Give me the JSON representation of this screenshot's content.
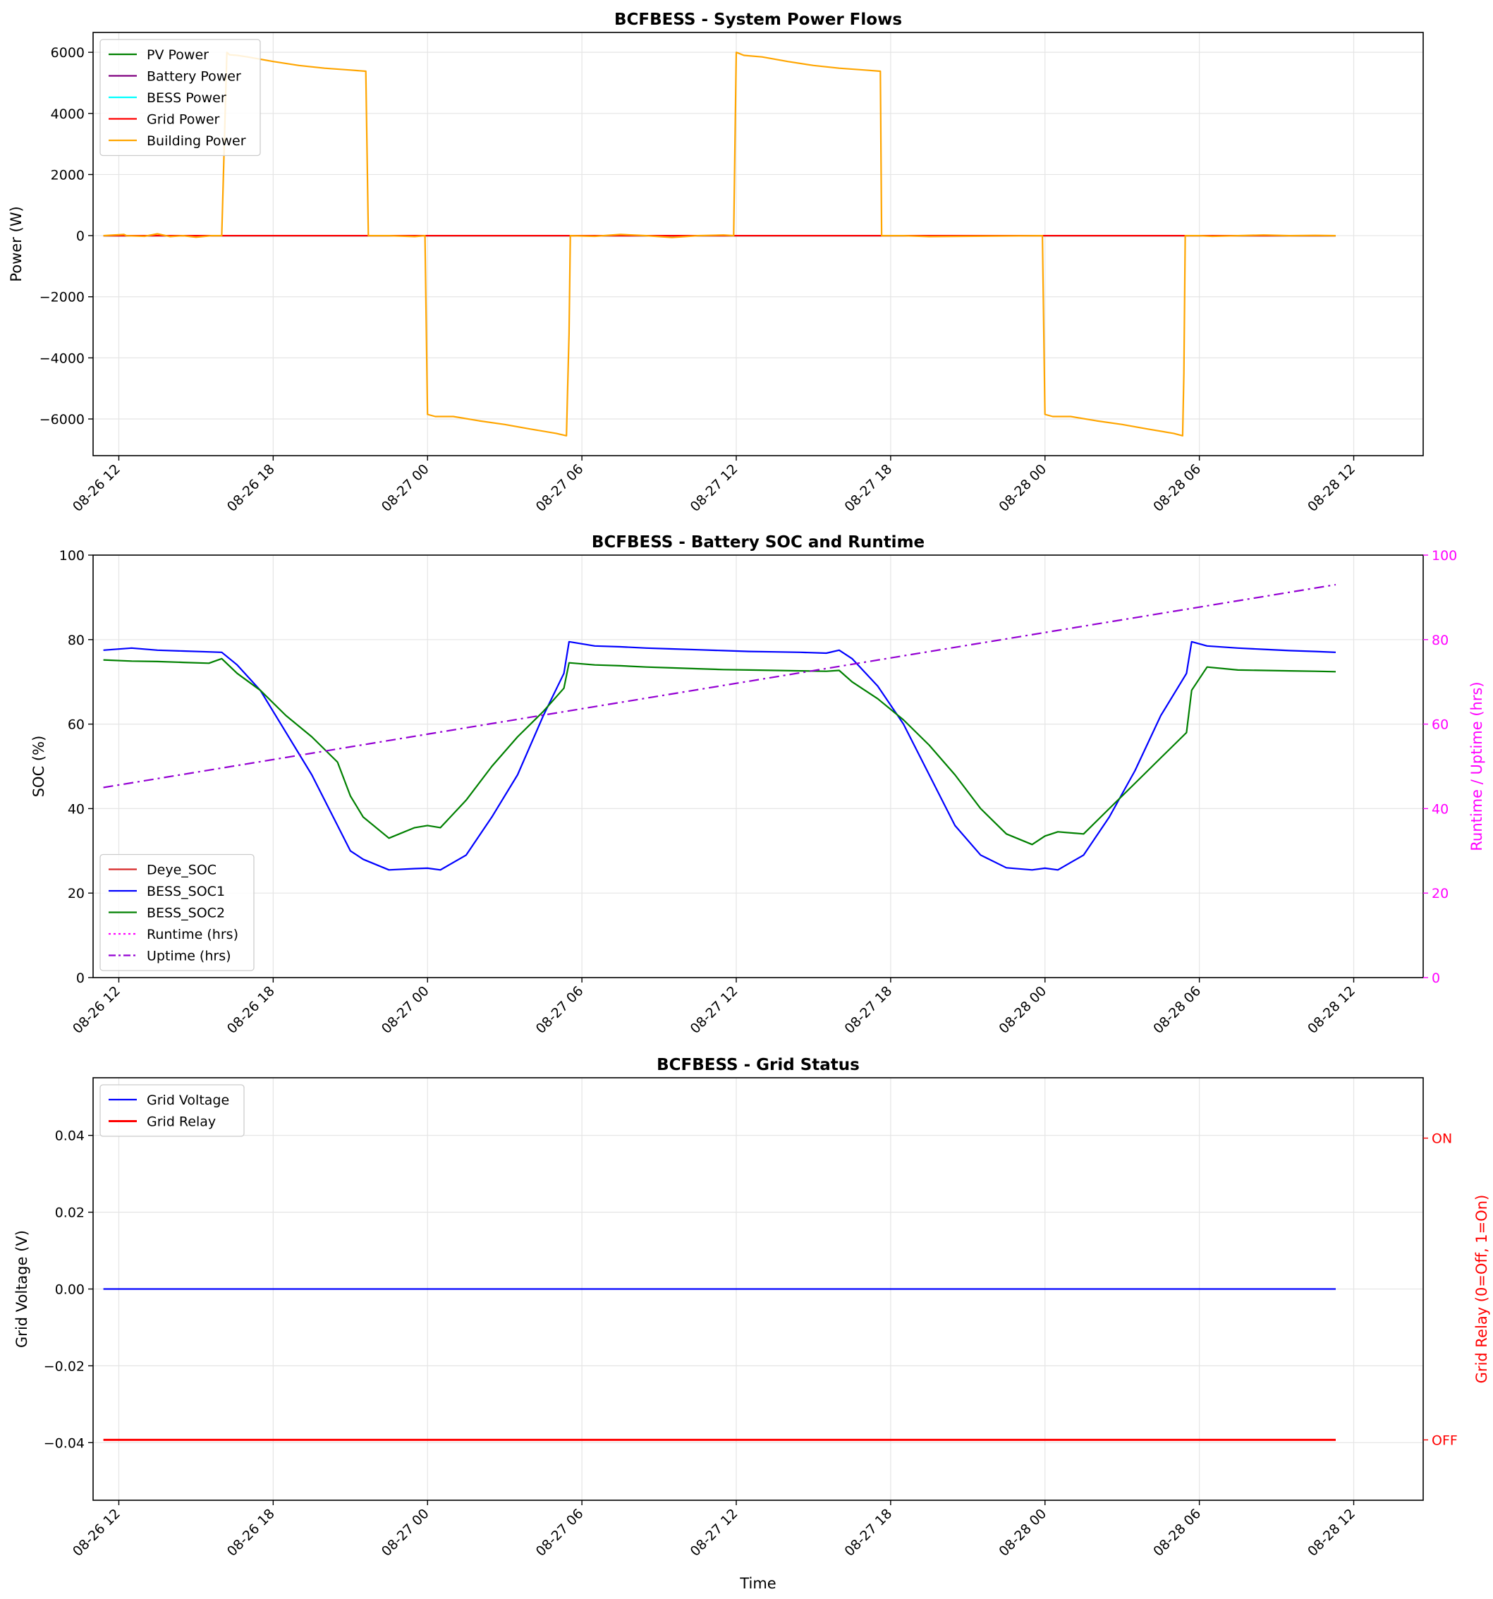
{
  "figure": {
    "xlabel": "Time",
    "x_ticks": [
      "08-26 12",
      "08-26 18",
      "08-27 00",
      "08-27 06",
      "08-27 12",
      "08-27 18",
      "08-28 00",
      "08-28 06",
      "08-28 12"
    ],
    "x_range_hours": [
      -1.0,
      50.7
    ]
  },
  "chart_data": [
    {
      "type": "line",
      "title": "BCFBESS - System Power Flows",
      "ylabel": "Power (W)",
      "ylim": [
        -7200,
        6650
      ],
      "yticks": [
        -6000,
        -4000,
        -2000,
        0,
        2000,
        4000,
        6000
      ],
      "ytick_labels": [
        "−6000",
        "−4000",
        "−2000",
        "0",
        "2000",
        "4000",
        "6000"
      ],
      "grid": true,
      "legend_position": "upper-left",
      "x_unit": "hours since 08-26 12:00",
      "series": [
        {
          "name": "PV Power",
          "color": "#008000",
          "x": [
            -0.6,
            47.3
          ],
          "y": [
            0,
            0
          ]
        },
        {
          "name": "Battery Power",
          "color": "#800080",
          "x": [
            -0.6,
            47.3
          ],
          "y": [
            0,
            0
          ]
        },
        {
          "name": "BESS Power",
          "color": "#00ffff",
          "x": [
            -0.6,
            47.3
          ],
          "y": [
            0,
            0
          ]
        },
        {
          "name": "Grid Power",
          "color": "#ff0000",
          "x": [
            -0.6,
            47.3
          ],
          "y": [
            0,
            0
          ]
        },
        {
          "name": "Building Power",
          "color": "#ffa500",
          "x": [
            -0.6,
            0.2,
            0.3,
            1.0,
            1.5,
            2.0,
            2.5,
            3.0,
            3.6,
            4.0,
            4.2,
            4.3,
            4.6,
            5.0,
            6.0,
            7.0,
            8.0,
            9.0,
            9.6,
            9.7,
            10.5,
            11.5,
            11.9,
            12.0,
            12.3,
            13.0,
            14.0,
            15.0,
            16.0,
            17.0,
            17.4,
            17.45,
            17.5,
            17.55,
            18.5,
            19.5,
            20.5,
            21.5,
            22.5,
            23.5,
            23.9,
            24.0,
            24.3,
            25.0,
            26.0,
            27.0,
            28.0,
            29.0,
            29.6,
            29.65,
            30.5,
            31.5,
            35.9,
            36.0,
            36.3,
            37.0,
            38.0,
            39.0,
            40.0,
            41.0,
            41.35,
            41.4,
            41.45,
            42.0,
            42.5,
            43.5,
            44.5,
            45.5,
            46.5,
            47.3
          ],
          "y": [
            0,
            40,
            0,
            -20,
            60,
            -30,
            0,
            -50,
            0,
            0,
            6000,
            5920,
            5900,
            5850,
            5700,
            5570,
            5480,
            5420,
            5380,
            0,
            0,
            -30,
            0,
            -5850,
            -5920,
            -5920,
            -6060,
            -6180,
            -6330,
            -6470,
            -6550,
            -4800,
            -3200,
            0,
            -20,
            40,
            0,
            -60,
            0,
            20,
            0,
            6000,
            5900,
            5850,
            5700,
            5570,
            5480,
            5420,
            5380,
            0,
            0,
            -30,
            0,
            -5850,
            -5920,
            -5920,
            -6060,
            -6180,
            -6330,
            -6470,
            -6550,
            -4500,
            0,
            0,
            -20,
            0,
            20,
            0,
            10,
            0
          ]
        }
      ]
    },
    {
      "type": "line",
      "title": "BCFBESS - Battery SOC and Runtime",
      "ylabel": "SOC (%)",
      "ylim": [
        0,
        100
      ],
      "yticks": [
        0,
        20,
        40,
        60,
        80,
        100
      ],
      "y2label": "Runtime / Uptime (hrs)",
      "y2lim": [
        0,
        100
      ],
      "y2ticks": [
        0,
        20,
        40,
        60,
        80,
        100
      ],
      "grid": true,
      "legend_position": "lower-left",
      "x_unit": "hours since 08-26 12:00",
      "series": [
        {
          "name": "Deye_SOC",
          "color": "#d62728",
          "axis": "left",
          "x": [],
          "y": []
        },
        {
          "name": "BESS_SOC1",
          "color": "#0000ff",
          "axis": "left",
          "x": [
            -0.6,
            0.5,
            1.5,
            2.5,
            3.5,
            4.0,
            4.6,
            5.5,
            6.5,
            7.5,
            8.5,
            9.0,
            9.5,
            10.5,
            11.5,
            12.0,
            12.5,
            13.5,
            14.5,
            15.5,
            16.5,
            17.3,
            17.5,
            18.5,
            19.5,
            20.5,
            21.5,
            22.5,
            23.5,
            24.5,
            25.5,
            26.5,
            27.5,
            28.0,
            28.5,
            29.5,
            30.5,
            31.5,
            32.5,
            33.5,
            34.5,
            35.5,
            36.0,
            36.5,
            37.5,
            38.5,
            39.5,
            40.5,
            41.5,
            41.7,
            42.3,
            43.5,
            44.5,
            45.5,
            46.5,
            47.3
          ],
          "y": [
            77.5,
            78.0,
            77.5,
            77.3,
            77.1,
            77.0,
            74.0,
            68.0,
            58.0,
            48.0,
            36.0,
            30.0,
            28.0,
            25.5,
            25.8,
            25.9,
            25.5,
            29.0,
            38.0,
            48.0,
            62.0,
            72.0,
            79.5,
            78.5,
            78.3,
            78.0,
            77.8,
            77.6,
            77.4,
            77.2,
            77.1,
            77.0,
            76.8,
            77.5,
            75.5,
            69.0,
            60.0,
            48.0,
            36.0,
            29.0,
            26.0,
            25.5,
            25.9,
            25.5,
            29.0,
            38.0,
            49.0,
            62.0,
            72.0,
            79.5,
            78.5,
            78.0,
            77.7,
            77.4,
            77.2,
            77.0
          ]
        },
        {
          "name": "BESS_SOC2",
          "color": "#008000",
          "axis": "left",
          "x": [
            -0.6,
            0.5,
            1.5,
            2.5,
            3.5,
            4.0,
            4.6,
            5.5,
            6.5,
            7.5,
            8.5,
            9.0,
            9.5,
            10.5,
            11.5,
            12.0,
            12.5,
            13.5,
            14.5,
            15.5,
            16.5,
            17.3,
            17.5,
            18.5,
            19.5,
            20.5,
            21.5,
            22.5,
            23.5,
            24.5,
            25.5,
            26.5,
            27.5,
            28.0,
            28.5,
            29.5,
            30.5,
            31.5,
            32.5,
            33.5,
            34.5,
            35.5,
            36.0,
            36.5,
            37.5,
            38.5,
            39.5,
            40.5,
            41.5,
            41.7,
            42.3,
            43.5,
            44.5,
            45.5,
            46.5,
            47.3
          ],
          "y": [
            75.2,
            74.9,
            74.8,
            74.6,
            74.4,
            75.5,
            72.0,
            68.0,
            62.0,
            57.0,
            51.0,
            43.0,
            38.0,
            33.0,
            35.5,
            36.0,
            35.5,
            42.0,
            50.0,
            57.0,
            63.0,
            68.5,
            74.5,
            74.0,
            73.8,
            73.5,
            73.3,
            73.1,
            72.9,
            72.8,
            72.7,
            72.6,
            72.5,
            72.7,
            70.0,
            66.0,
            61.0,
            55.0,
            48.0,
            40.0,
            34.0,
            31.5,
            33.5,
            34.5,
            34.0,
            40.0,
            46.0,
            52.0,
            58.0,
            68.0,
            73.5,
            72.8,
            72.7,
            72.6,
            72.5,
            72.4
          ]
        },
        {
          "name": "Runtime (hrs)",
          "color": "#ff00ff",
          "axis": "right",
          "dash": "dotted",
          "x": [],
          "y": []
        },
        {
          "name": "Uptime (hrs)",
          "color": "#9400d3",
          "axis": "right",
          "dash": "dashdot",
          "x": [
            -0.6,
            47.3
          ],
          "y": [
            45.0,
            93.0
          ]
        }
      ]
    },
    {
      "type": "line",
      "title": "BCFBESS - Grid Status",
      "ylabel": "Grid Voltage (V)",
      "ylim": [
        -0.055,
        0.055
      ],
      "yticks": [
        -0.04,
        -0.02,
        0.0,
        0.02,
        0.04
      ],
      "ytick_labels": [
        "−0.04",
        "−0.02",
        "0.00",
        "0.02",
        "0.04"
      ],
      "y2label": "Grid Relay (0=Off, 1=On)",
      "y2lim": [
        -0.2,
        1.2
      ],
      "y2ticks": [
        0,
        1
      ],
      "y2tick_labels": [
        "OFF",
        "ON"
      ],
      "grid": true,
      "legend_position": "upper-left",
      "x_unit": "hours since 08-26 12:00",
      "series": [
        {
          "name": "Grid Voltage",
          "color": "#0000ff",
          "axis": "left",
          "x": [
            -0.6,
            47.3
          ],
          "y": [
            0,
            0
          ]
        },
        {
          "name": "Grid Relay",
          "color": "#ff0000",
          "axis": "right",
          "width": 3,
          "x": [
            -0.6,
            47.3
          ],
          "y": [
            0,
            0
          ]
        }
      ]
    }
  ]
}
